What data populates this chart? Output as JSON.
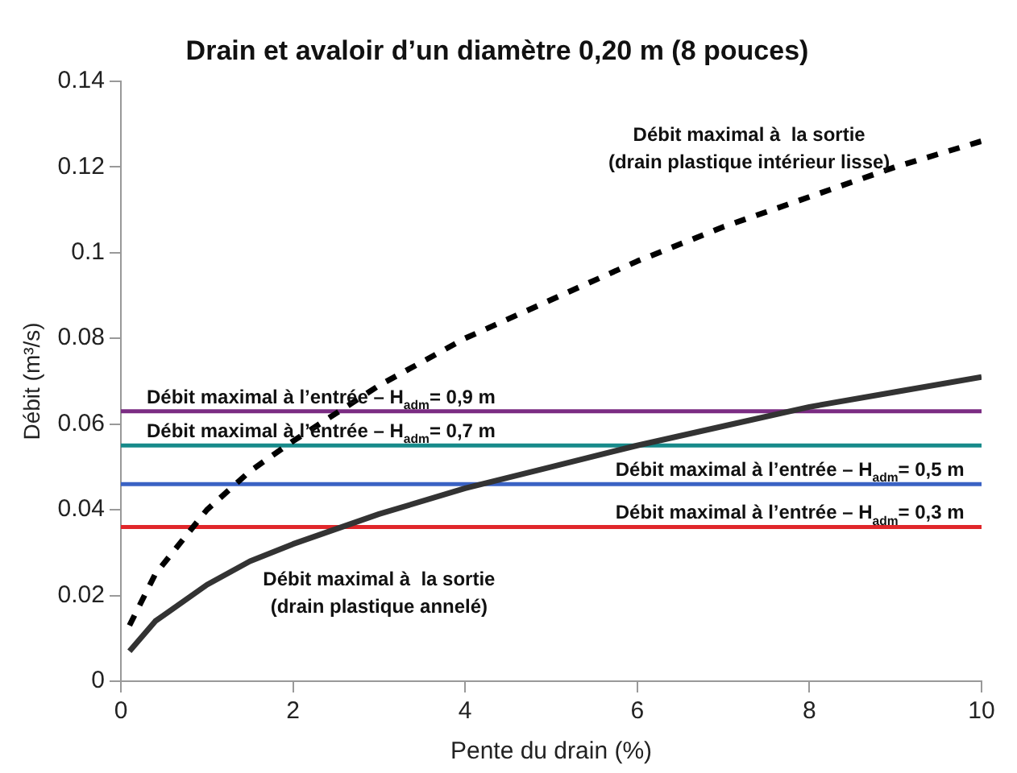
{
  "chart_data": {
    "type": "line",
    "title": "Drain et avaloir d’un diamètre 0,20 m (8 pouces)",
    "xlabel": "Pente du drain (%)",
    "ylabel": "Débit (m³/s)",
    "xlim": [
      0,
      10
    ],
    "xticks": [
      0,
      2,
      4,
      6,
      8,
      10
    ],
    "ylim": [
      0,
      0.14
    ],
    "yticks": [
      0,
      0.02,
      0.04,
      0.06,
      0.08,
      0.1,
      0.12,
      0.14
    ],
    "grid": false,
    "legend": false,
    "marker": "none",
    "series": [
      {
        "name": "Débit maximal à  la sortie\n(drain plastique intérieur lisse)",
        "color": "#000000",
        "line_style": "dashed",
        "x": [
          0.1,
          0.4,
          1,
          1.5,
          2,
          3,
          4,
          5,
          6,
          7,
          8,
          9,
          10
        ],
        "values": [
          0.013,
          0.025,
          0.04,
          0.049,
          0.056,
          0.069,
          0.08,
          0.089,
          0.098,
          0.106,
          0.113,
          0.12,
          0.126
        ]
      },
      {
        "name": "Débit maximal à  la sortie\n(drain plastique annelé)",
        "color": "#333333",
        "line_style": "solid",
        "x": [
          0.1,
          0.4,
          1,
          1.5,
          2,
          3,
          4,
          5,
          6,
          7,
          8,
          9,
          10
        ],
        "values": [
          0.007,
          0.014,
          0.0225,
          0.028,
          0.032,
          0.039,
          0.045,
          0.05,
          0.055,
          0.0595,
          0.064,
          0.0675,
          0.071
        ]
      },
      {
        "name": "Débit maximal à l’entrée – H$_{adm}$= 0,9 m",
        "color": "#7b2c83",
        "line_style": "solid",
        "x": [
          0,
          10
        ],
        "values": [
          0.063,
          0.063
        ]
      },
      {
        "name": "Débit maximal à l’entrée – H$_{adm}$= 0,7 m",
        "color": "#178a8a",
        "line_style": "solid",
        "x": [
          0,
          10
        ],
        "values": [
          0.055,
          0.055
        ]
      },
      {
        "name": "Débit maximal à l’entrée – H$_{adm}$= 0,5 m",
        "color": "#3a62c4",
        "line_style": "solid",
        "x": [
          0,
          10
        ],
        "values": [
          0.046,
          0.046
        ]
      },
      {
        "name": "Débit maximal à l’entrée – H$_{adm}$= 0,3 m",
        "color": "#e0262a",
        "line_style": "solid",
        "x": [
          0,
          10
        ],
        "values": [
          0.036,
          0.036
        ]
      }
    ]
  }
}
